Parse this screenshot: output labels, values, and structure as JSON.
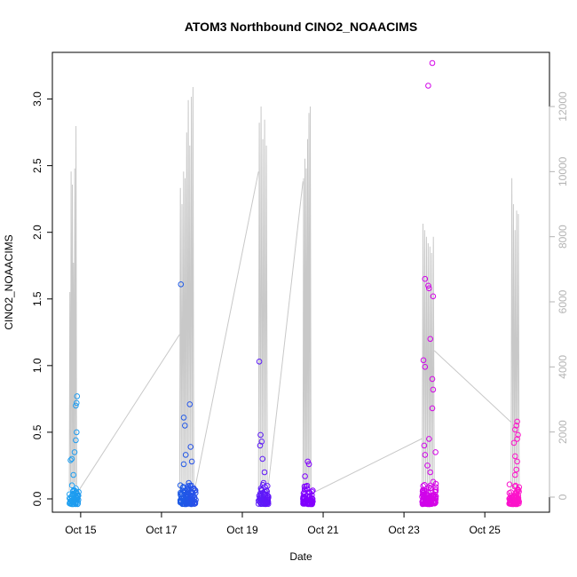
{
  "chart_data": {
    "type": "scatter",
    "title": "ATOM3 Northbound CINO2_NOAACIMS",
    "xlabel": "Date",
    "ylabel": "CINO2_NOAACIMS",
    "x_ticks": [
      {
        "day": 15,
        "label": "Oct 15"
      },
      {
        "day": 17,
        "label": "Oct 17"
      },
      {
        "day": 19,
        "label": "Oct 19"
      },
      {
        "day": 21,
        "label": "Oct 21"
      },
      {
        "day": 23,
        "label": "Oct 23"
      },
      {
        "day": 25,
        "label": "Oct 25"
      }
    ],
    "y_ticks": [
      0.0,
      0.5,
      1.0,
      1.5,
      2.0,
      2.5,
      3.0
    ],
    "y_tick_labels": [
      "0.0",
      "0.5",
      "1.0",
      "1.5",
      "2.0",
      "2.5",
      "3.0"
    ],
    "y2_ticks": [
      0,
      2000,
      4000,
      6000,
      8000,
      10000,
      12000
    ],
    "y2_tick_labels": [
      "0",
      "2000",
      "4000",
      "6000",
      "8000",
      "10000",
      "12000"
    ],
    "xlim": [
      14.3,
      26.6
    ],
    "ylim": [
      -0.1,
      3.35
    ],
    "y2lim": [
      0,
      12000
    ],
    "grid": false,
    "colors": {
      "altitude_line": "#c8c8c8",
      "right_axis": "#b4b4b4",
      "point_gradient": [
        "#1ea0f0",
        "#1e5ae6",
        "#7800ff",
        "#c800f0",
        "#ff14c8"
      ]
    },
    "series": [
      {
        "role": "altitude",
        "axis": "right",
        "flights": [
          {
            "start": 14.72,
            "end": 14.9,
            "peaks": [
              6300,
              10000,
              9600,
              7200,
              10100,
              11400
            ]
          },
          {
            "start": 17.45,
            "end": 17.8,
            "peaks": [
              9500,
              9000,
              10000,
              9800,
              11200,
              12200,
              10800,
              12300,
              12600
            ]
          },
          {
            "start": 19.4,
            "end": 19.62,
            "peaks": [
              11500,
              12000,
              11000,
              11600,
              10800
            ]
          },
          {
            "start": 20.5,
            "end": 20.7,
            "peaks": [
              9800,
              10400,
              10100,
              11000,
              11800,
              12000
            ]
          },
          {
            "start": 23.45,
            "end": 23.75,
            "peaks": [
              8400,
              8200,
              8000,
              7800,
              7700,
              7500,
              8000
            ]
          },
          {
            "start": 25.65,
            "end": 25.85,
            "peaks": [
              9800,
              9000,
              8200,
              8800,
              8700
            ]
          }
        ],
        "transits": [
          {
            "from": [
              14.9,
              100
            ],
            "to": [
              17.45,
              5000
            ]
          },
          {
            "from": [
              17.8,
              100
            ],
            "to": [
              19.4,
              10000
            ]
          },
          {
            "from": [
              19.62,
              100
            ],
            "to": [
              20.5,
              9700
            ]
          },
          {
            "from": [
              20.7,
              100
            ],
            "to": [
              23.45,
              1800
            ]
          },
          {
            "from": [
              23.75,
              4500
            ],
            "to": [
              25.65,
              2300
            ]
          }
        ]
      },
      {
        "role": "CINO2_NOAACIMS",
        "axis": "left",
        "clusters": [
          {
            "start": 14.72,
            "end": 14.95,
            "n": 55,
            "outliers": [
              [
                14.75,
                0.29
              ],
              [
                14.78,
                0.3
              ],
              [
                14.82,
                0.18
              ],
              [
                14.85,
                0.35
              ],
              [
                14.88,
                0.7
              ],
              [
                14.9,
                0.72
              ],
              [
                14.91,
                0.77
              ],
              [
                14.9,
                0.5
              ],
              [
                14.88,
                0.44
              ]
            ]
          },
          {
            "start": 17.45,
            "end": 17.85,
            "n": 95,
            "outliers": [
              [
                17.48,
                1.61
              ],
              [
                17.55,
                0.61
              ],
              [
                17.58,
                0.55
              ],
              [
                17.7,
                0.71
              ],
              [
                17.72,
                0.39
              ],
              [
                17.75,
                0.28
              ],
              [
                17.6,
                0.33
              ],
              [
                17.55,
                0.26
              ]
            ]
          },
          {
            "start": 19.4,
            "end": 19.65,
            "n": 65,
            "outliers": [
              [
                19.42,
                1.03
              ],
              [
                19.45,
                0.48
              ],
              [
                19.44,
                0.4
              ],
              [
                19.48,
                0.43
              ],
              [
                19.5,
                0.3
              ],
              [
                19.55,
                0.2
              ]
            ]
          },
          {
            "start": 20.5,
            "end": 20.75,
            "n": 65,
            "outliers": [
              [
                20.62,
                0.28
              ],
              [
                20.65,
                0.26
              ],
              [
                20.55,
                0.17
              ]
            ]
          },
          {
            "start": 23.45,
            "end": 23.8,
            "n": 100,
            "outliers": [
              [
                23.7,
                3.27
              ],
              [
                23.6,
                3.1
              ],
              [
                23.52,
                1.65
              ],
              [
                23.6,
                1.6
              ],
              [
                23.62,
                1.58
              ],
              [
                23.72,
                1.52
              ],
              [
                23.65,
                1.2
              ],
              [
                23.48,
                1.04
              ],
              [
                23.52,
                0.99
              ],
              [
                23.7,
                0.9
              ],
              [
                23.72,
                0.82
              ],
              [
                23.7,
                0.68
              ],
              [
                23.62,
                0.45
              ],
              [
                23.5,
                0.4
              ],
              [
                23.52,
                0.33
              ],
              [
                23.78,
                0.35
              ],
              [
                23.58,
                0.25
              ],
              [
                23.65,
                0.2
              ]
            ]
          },
          {
            "start": 25.6,
            "end": 25.85,
            "n": 70,
            "outliers": [
              [
                25.8,
                0.58
              ],
              [
                25.78,
                0.55
              ],
              [
                25.75,
                0.52
              ],
              [
                25.82,
                0.48
              ],
              [
                25.8,
                0.45
              ],
              [
                25.72,
                0.42
              ],
              [
                25.75,
                0.32
              ],
              [
                25.8,
                0.28
              ],
              [
                25.78,
                0.22
              ],
              [
                25.75,
                0.18
              ]
            ]
          }
        ]
      }
    ]
  }
}
